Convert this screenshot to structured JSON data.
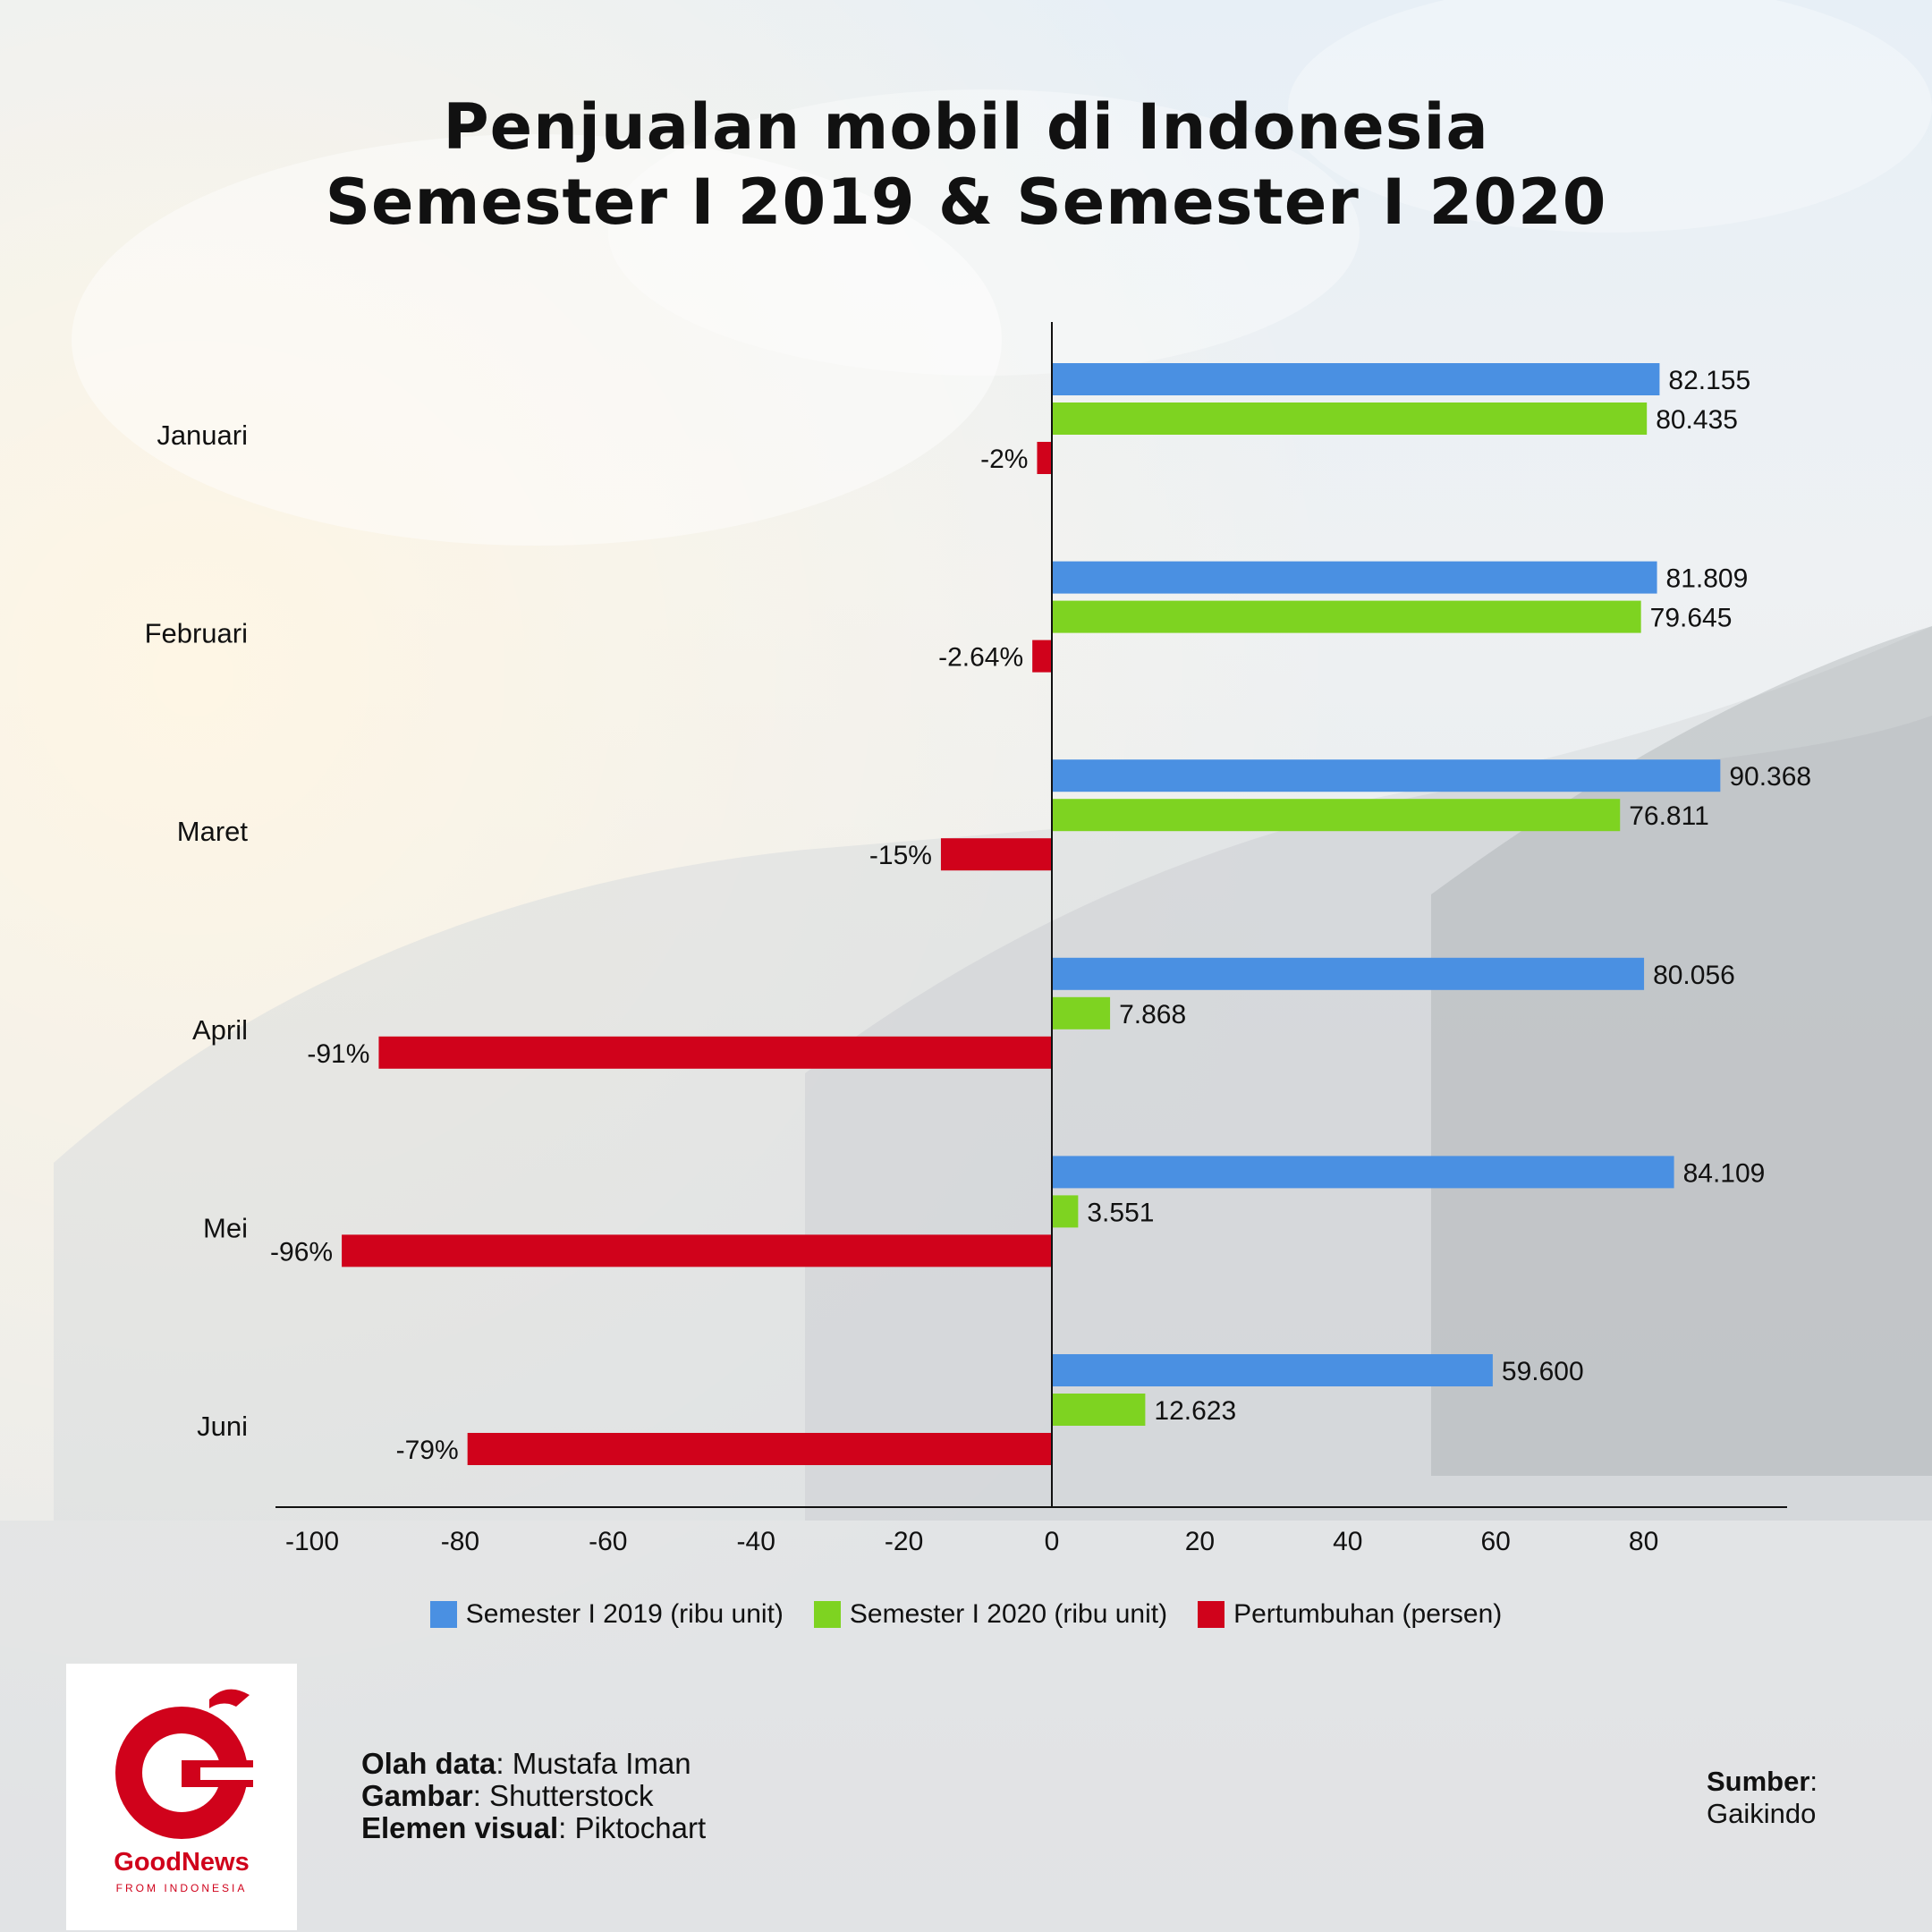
{
  "title_lines": [
    "Penjualan mobil di Indonesia",
    "Semester I 2019 & Semester I 2020"
  ],
  "chart_data": {
    "type": "bar",
    "orientation": "horizontal",
    "categories": [
      "Januari",
      "Februari",
      "Maret",
      "April",
      "Mei",
      "Juni"
    ],
    "series": [
      {
        "name": "Semester I 2019 (ribu unit)",
        "color": "#4a90e2",
        "values": [
          82.155,
          81.809,
          90.368,
          80.056,
          84.109,
          59.6
        ],
        "labels": [
          "82.155",
          "81.809",
          "90.368",
          "80.056",
          "84.109",
          "59.600"
        ]
      },
      {
        "name": "Semester I 2020 (ribu unit)",
        "color": "#7ed321",
        "values": [
          80.435,
          79.645,
          76.811,
          7.868,
          3.551,
          12.623
        ],
        "labels": [
          "80.435",
          "79.645",
          "76.811",
          "7.868",
          "3.551",
          "12.623"
        ]
      },
      {
        "name": "Pertumbuhan (persen)",
        "color": "#d0021b",
        "values": [
          -2,
          -2.64,
          -15,
          -91,
          -96,
          -79
        ],
        "labels": [
          "-2%",
          "-2.64%",
          "-15%",
          "-91%",
          "-96%",
          "-79%"
        ]
      }
    ],
    "xlim": [
      -105,
      100
    ],
    "xticks": [
      -100,
      -80,
      -60,
      -40,
      -20,
      0,
      20,
      40,
      60,
      80
    ],
    "legend_position": "bottom",
    "grid": false
  },
  "logo": {
    "name": "GoodNews",
    "tagline": "FROM INDONESIA",
    "icon": "garuda-g-logo-icon",
    "color": "#d0021b"
  },
  "credits": [
    {
      "label": "Olah data",
      "value": ": Mustafa Iman"
    },
    {
      "label": "Gambar",
      "value": ": Shutterstock"
    },
    {
      "label": "Elemen visual",
      "value": ": Piktochart"
    }
  ],
  "source": {
    "label": "Sumber",
    "sep": ":",
    "value": "Gaikindo"
  }
}
